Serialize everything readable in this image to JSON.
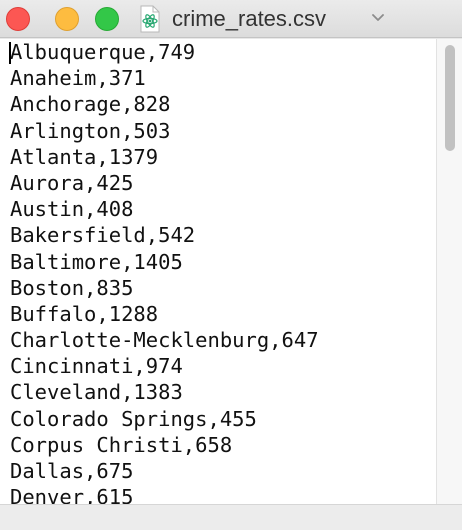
{
  "window": {
    "title": "crime_rates.csv",
    "file_icon": "atom-icon",
    "title_menu_icon": "chevron-down-icon",
    "traffic_colors": {
      "close": "#fc5753",
      "minimize": "#fdbc40",
      "zoom": "#33c748"
    },
    "accent_icon_color": "#2aa873"
  },
  "editor": {
    "lines": [
      "Albuquerque,749",
      "Anaheim,371",
      "Anchorage,828",
      "Arlington,503",
      "Atlanta,1379",
      "Aurora,425",
      "Austin,408",
      "Bakersfield,542",
      "Baltimore,1405",
      "Boston,835",
      "Buffalo,1288",
      "Charlotte-Mecklenburg,647",
      "Cincinnati,974",
      "Cleveland,1383",
      "Colorado Springs,455",
      "Corpus Christi,658",
      "Dallas,675",
      "Denver,615"
    ]
  }
}
